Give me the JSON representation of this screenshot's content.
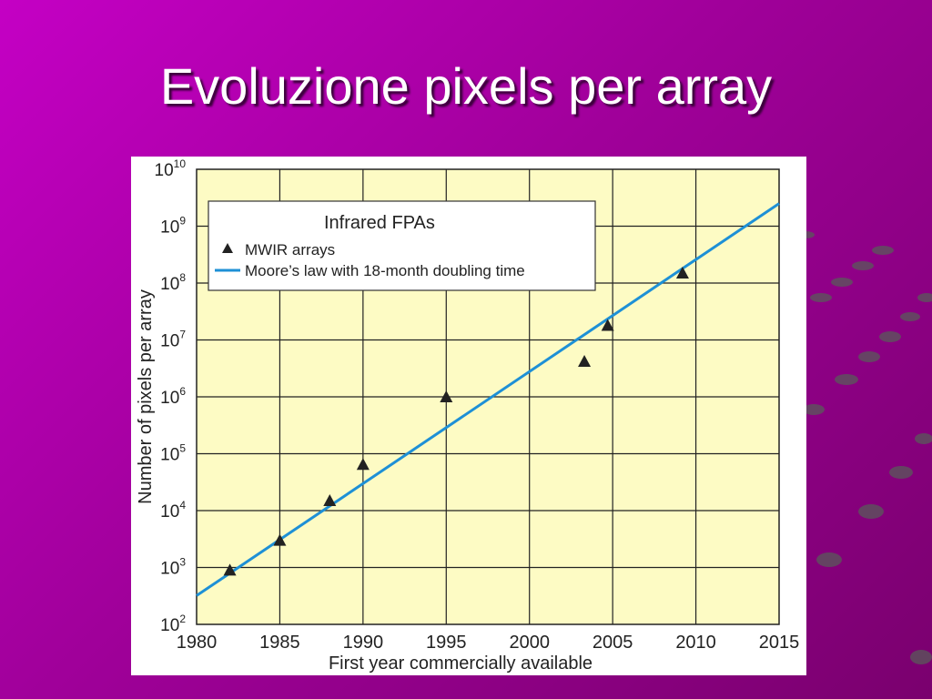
{
  "slide": {
    "title": "Evoluzione pixels per array"
  },
  "colors": {
    "background_start": "#c400c4",
    "background_end": "#7a006e",
    "plot_background": "#fdfbc4",
    "moore_line": "#1e90d6",
    "markers": "#222222"
  },
  "chart_data": {
    "type": "scatter",
    "title": "",
    "xlabel": "First year commercially available",
    "ylabel": "Number of pixels per array",
    "xlim": [
      1980,
      2015
    ],
    "ylim": [
      100,
      10000000000
    ],
    "y_scale": "log",
    "grid": true,
    "x_ticks": [
      1980,
      1985,
      1990,
      1995,
      2000,
      2005,
      2010,
      2015
    ],
    "x_tick_labels": [
      "1980",
      "1985",
      "1990",
      "1995",
      "2000",
      "2005",
      "2010",
      "2015"
    ],
    "y_ticks": [
      100,
      1000,
      10000,
      100000,
      1000000,
      10000000,
      100000000,
      1000000000,
      10000000000
    ],
    "y_tick_labels": [
      {
        "base": "10",
        "exp": "2"
      },
      {
        "base": "10",
        "exp": "3"
      },
      {
        "base": "10",
        "exp": "4"
      },
      {
        "base": "10",
        "exp": "5"
      },
      {
        "base": "10",
        "exp": "6"
      },
      {
        "base": "10",
        "exp": "7"
      },
      {
        "base": "10",
        "exp": "8"
      },
      {
        "base": "10",
        "exp": "9"
      },
      {
        "base": "10",
        "exp": "10"
      }
    ],
    "legend": {
      "title": "Infrared FPAs",
      "placement": "top-left",
      "entries": [
        "MWIR arrays",
        "Moore’s law with 18-month doubling time"
      ]
    },
    "series": [
      {
        "name": "MWIR arrays",
        "marker": "triangle",
        "points": [
          {
            "x": 1982,
            "y": 900
          },
          {
            "x": 1985,
            "y": 3000
          },
          {
            "x": 1988,
            "y": 15000
          },
          {
            "x": 1990,
            "y": 65000
          },
          {
            "x": 1995,
            "y": 1000000
          },
          {
            "x": 2003.3,
            "y": 4200000
          },
          {
            "x": 2004.7,
            "y": 18000000
          },
          {
            "x": 2009.2,
            "y": 150000000
          }
        ]
      },
      {
        "name": "Moore’s law with 18-month doubling time",
        "type": "line",
        "points": [
          {
            "x": 1980,
            "y": 320
          },
          {
            "x": 2015,
            "y": 2500000000
          }
        ]
      }
    ]
  }
}
